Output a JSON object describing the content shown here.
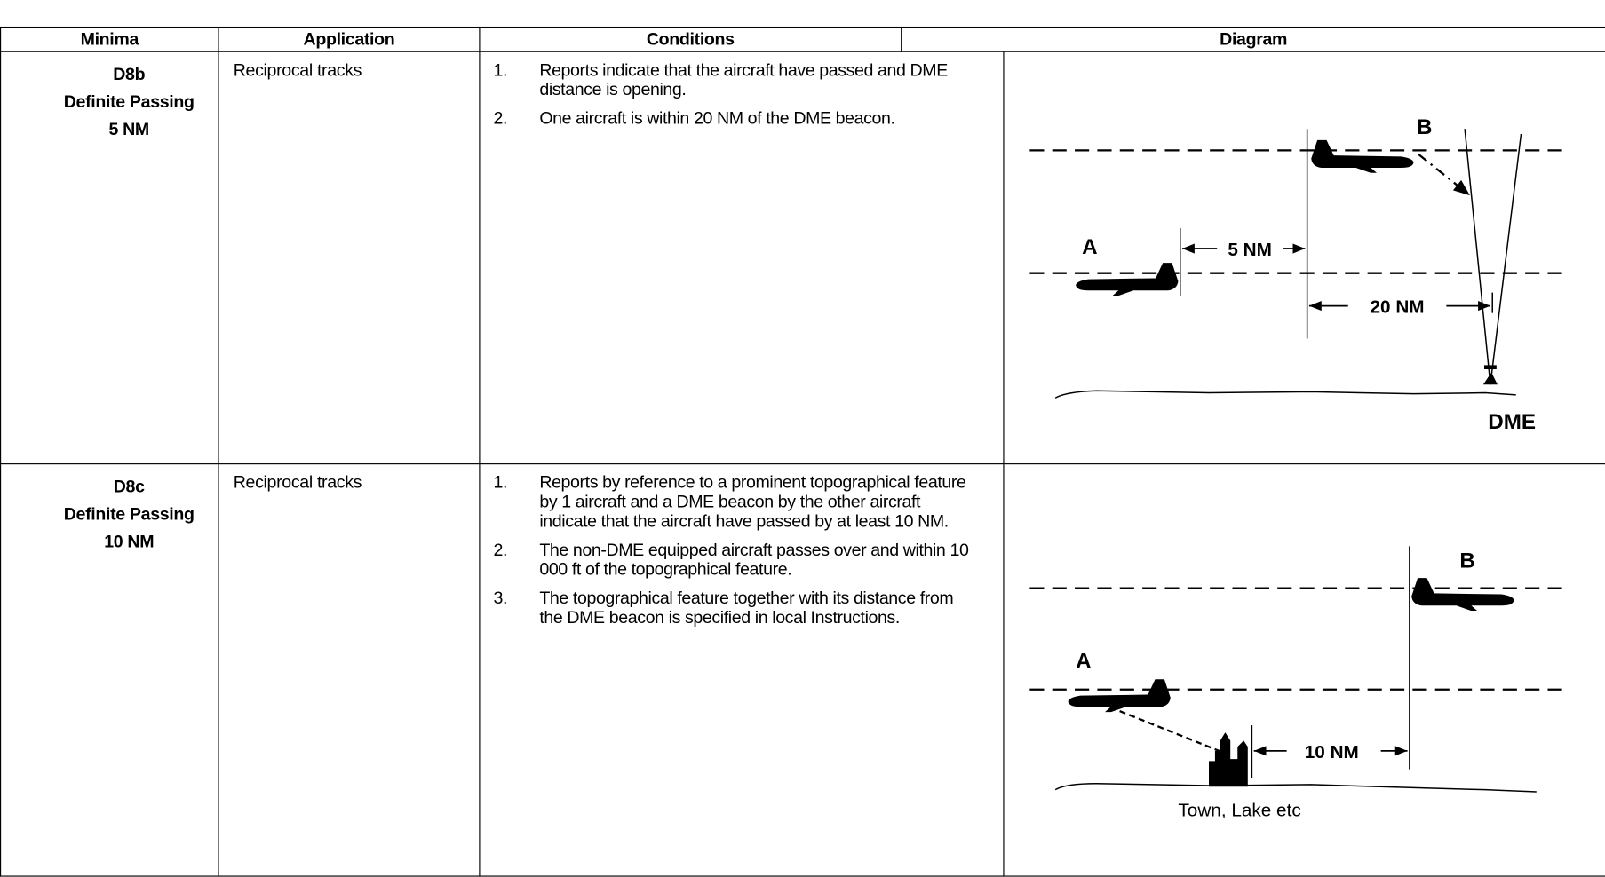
{
  "table": {
    "headers": [
      "Minima",
      "Application",
      "Conditions",
      "Diagram"
    ],
    "rows": [
      {
        "minima": [
          "D8b",
          "Definite Passing",
          "5 NM"
        ],
        "application": "Reciprocal tracks",
        "conditions": [
          {
            "number": "1.",
            "text": "Reports indicate that the aircraft have passed and DME distance is opening."
          },
          {
            "number": "2.",
            "text": "One aircraft is within 20 NM of the DME beacon."
          }
        ],
        "diagram": {
          "aircraft_b": "B",
          "aircraft_a": "A",
          "separation": "5 NM",
          "distance": "20 NM",
          "beacon": "DME"
        }
      },
      {
        "minima": [
          "D8c",
          "Definite Passing",
          "10 NM"
        ],
        "application": "Reciprocal tracks",
        "conditions": [
          {
            "number": "1.",
            "text": "Reports by reference to a prominent topographical feature by 1 aircraft and a DME beacon by the other aircraft indicate that the aircraft have passed by at least 10 NM."
          },
          {
            "number": "2.",
            "text": "The non-DME equipped aircraft passes over and within 10 000 ft of the topographical feature."
          },
          {
            "number": "3.",
            "text": "The topographical feature together with its distance from the DME beacon is specified in local Instructions."
          }
        ],
        "diagram": {
          "aircraft_b": "B",
          "aircraft_a": "A",
          "separation": "10 NM",
          "feature": "Town, Lake etc"
        }
      }
    ]
  }
}
